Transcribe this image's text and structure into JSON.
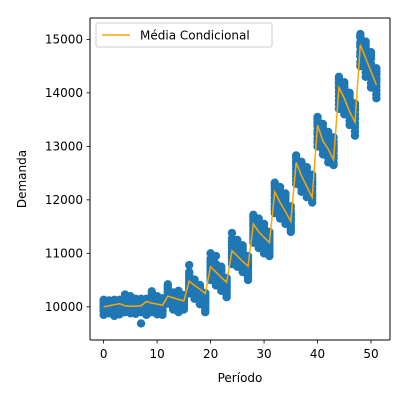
{
  "chart_data": {
    "type": "scatter",
    "xlabel": "Período",
    "ylabel": "Demanda",
    "xlim": [
      -2.55,
      53.55
    ],
    "ylim": [
      9380,
      15400
    ],
    "xticks": [
      0,
      10,
      20,
      30,
      40,
      50
    ],
    "yticks": [
      10000,
      11000,
      12000,
      13000,
      14000,
      15000
    ],
    "grid": false,
    "legend": {
      "position": "top-left",
      "entries": [
        "Média Condicional"
      ]
    },
    "colors": {
      "scatter": "#1f77b4",
      "line": "#ffa500"
    },
    "scatter_series": {
      "x": [
        0,
        0,
        0,
        0,
        0,
        0,
        0,
        0,
        0,
        0,
        1,
        1,
        1,
        1,
        1,
        1,
        1,
        1,
        1,
        1,
        2,
        2,
        2,
        2,
        2,
        2,
        2,
        2,
        2,
        2,
        3,
        3,
        3,
        3,
        3,
        3,
        3,
        3,
        3,
        3,
        4,
        4,
        4,
        4,
        4,
        4,
        4,
        4,
        4,
        4,
        5,
        5,
        5,
        5,
        5,
        5,
        5,
        5,
        5,
        5,
        6,
        6,
        6,
        6,
        6,
        6,
        6,
        6,
        6,
        6,
        7,
        7,
        7,
        7,
        7,
        7,
        7,
        7,
        7,
        7,
        8,
        8,
        8,
        8,
        8,
        8,
        8,
        8,
        8,
        8,
        9,
        9,
        9,
        9,
        9,
        9,
        9,
        9,
        9,
        9,
        10,
        10,
        10,
        10,
        10,
        10,
        10,
        10,
        10,
        10,
        11,
        11,
        11,
        11,
        11,
        11,
        11,
        11,
        11,
        11,
        12,
        12,
        12,
        12,
        12,
        12,
        12,
        12,
        12,
        12,
        13,
        13,
        13,
        13,
        13,
        13,
        13,
        13,
        13,
        13,
        14,
        14,
        14,
        14,
        14,
        14,
        14,
        14,
        14,
        14,
        15,
        15,
        15,
        15,
        15,
        15,
        15,
        15,
        15,
        15,
        16,
        16,
        16,
        16,
        16,
        16,
        16,
        16,
        16,
        16,
        17,
        17,
        17,
        17,
        17,
        17,
        17,
        17,
        17,
        17,
        18,
        18,
        18,
        18,
        18,
        18,
        18,
        18,
        18,
        18,
        19,
        19,
        19,
        19,
        19,
        19,
        19,
        19,
        19,
        19,
        20,
        20,
        20,
        20,
        20,
        20,
        20,
        20,
        20,
        20,
        21,
        21,
        21,
        21,
        21,
        21,
        21,
        21,
        21,
        21,
        22,
        22,
        22,
        22,
        22,
        22,
        22,
        22,
        22,
        22,
        23,
        23,
        23,
        23,
        23,
        23,
        23,
        23,
        23,
        23,
        24,
        24,
        24,
        24,
        24,
        24,
        24,
        24,
        24,
        24,
        25,
        25,
        25,
        25,
        25,
        25,
        25,
        25,
        25,
        25,
        26,
        26,
        26,
        26,
        26,
        26,
        26,
        26,
        26,
        26,
        27,
        27,
        27,
        27,
        27,
        27,
        27,
        27,
        27,
        27,
        28,
        28,
        28,
        28,
        28,
        28,
        28,
        28,
        28,
        28,
        29,
        29,
        29,
        29,
        29,
        29,
        29,
        29,
        29,
        29,
        30,
        30,
        30,
        30,
        30,
        30,
        30,
        30,
        30,
        30,
        31,
        31,
        31,
        31,
        31,
        31,
        31,
        31,
        31,
        31,
        32,
        32,
        32,
        32,
        32,
        32,
        32,
        32,
        32,
        32,
        33,
        33,
        33,
        33,
        33,
        33,
        33,
        33,
        33,
        33,
        34,
        34,
        34,
        34,
        34,
        34,
        34,
        34,
        34,
        34,
        35,
        35,
        35,
        35,
        35,
        35,
        35,
        35,
        35,
        35,
        36,
        36,
        36,
        36,
        36,
        36,
        36,
        36,
        36,
        36,
        37,
        37,
        37,
        37,
        37,
        37,
        37,
        37,
        37,
        37,
        38,
        38,
        38,
        38,
        38,
        38,
        38,
        38,
        38,
        38,
        39,
        39,
        39,
        39,
        39,
        39,
        39,
        39,
        39,
        39,
        40,
        40,
        40,
        40,
        40,
        40,
        40,
        40,
        40,
        40,
        41,
        41,
        41,
        41,
        41,
        41,
        41,
        41,
        41,
        41,
        42,
        42,
        42,
        42,
        42,
        42,
        42,
        42,
        42,
        42,
        43,
        43,
        43,
        43,
        43,
        43,
        43,
        43,
        43,
        43,
        44,
        44,
        44,
        44,
        44,
        44,
        44,
        44,
        44,
        44,
        45,
        45,
        45,
        45,
        45,
        45,
        45,
        45,
        45,
        45,
        46,
        46,
        46,
        46,
        46,
        46,
        46,
        46,
        46,
        46,
        47,
        47,
        47,
        47,
        47,
        47,
        47,
        47,
        47,
        47,
        48,
        48,
        48,
        48,
        48,
        48,
        48,
        48,
        48,
        48,
        49,
        49,
        49,
        49,
        49,
        49,
        49,
        49,
        49,
        49,
        50,
        50,
        50,
        50,
        50,
        50,
        50,
        50,
        50,
        50,
        51,
        51,
        51,
        51,
        51,
        51,
        51,
        51,
        51,
        51
      ],
      "y": [
        9850,
        9920,
        9990,
        10060,
        10130,
        10000,
        9940,
        10080,
        10020,
        9960,
        9880,
        9940,
        10010,
        10070,
        10120,
        9900,
        9960,
        10040,
        10100,
        9980,
        9830,
        9900,
        9970,
        10040,
        10110,
        9860,
        9930,
        10000,
        10070,
        10130,
        9860,
        9930,
        10000,
        10060,
        10130,
        9900,
        9970,
        10040,
        10100,
        9960,
        9900,
        9980,
        10060,
        10140,
        10200,
        9940,
        10020,
        10100,
        10170,
        10230,
        9880,
        9950,
        10020,
        10090,
        10160,
        9910,
        9980,
        10050,
        10120,
        10200,
        9870,
        9940,
        10010,
        10080,
        10150,
        9900,
        9970,
        10040,
        10110,
        9990,
        9690,
        9900,
        9960,
        10020,
        10080,
        9930,
        9990,
        10050,
        10110,
        10150,
        9850,
        9920,
        9990,
        10060,
        10130,
        9880,
        9950,
        10020,
        10090,
        10150,
        9900,
        9980,
        10060,
        10140,
        10220,
        9940,
        10020,
        10100,
        10180,
        10290,
        9860,
        9930,
        10000,
        10070,
        10140,
        9890,
        9960,
        10030,
        10100,
        10200,
        9850,
        9920,
        9990,
        10060,
        10130,
        9880,
        9950,
        10020,
        10090,
        10160,
        10100,
        10180,
        10260,
        10340,
        10420,
        10140,
        10220,
        10300,
        10380,
        10060,
        9950,
        10020,
        10090,
        10160,
        10230,
        9980,
        10050,
        10120,
        10190,
        10270,
        9900,
        9980,
        10060,
        10140,
        10220,
        9940,
        10020,
        10100,
        10180,
        10300,
        9950,
        10010,
        10070,
        10130,
        10190,
        9980,
        10040,
        10100,
        10160,
        10220,
        10250,
        10350,
        10450,
        10550,
        10650,
        10300,
        10400,
        10500,
        10600,
        10780,
        10150,
        10230,
        10310,
        10390,
        10470,
        10190,
        10270,
        10350,
        10430,
        10510,
        10050,
        10130,
        10210,
        10290,
        10370,
        10090,
        10170,
        10250,
        10330,
        10410,
        9900,
        9980,
        10060,
        10140,
        10220,
        9940,
        10020,
        10100,
        10180,
        10260,
        10500,
        10600,
        10700,
        10800,
        10900,
        10550,
        10650,
        10750,
        10850,
        11000,
        10400,
        10500,
        10600,
        10700,
        10800,
        10450,
        10550,
        10650,
        10750,
        10950,
        10300,
        10400,
        10500,
        10600,
        10700,
        10350,
        10450,
        10550,
        10650,
        10750,
        10180,
        10260,
        10340,
        10420,
        10500,
        10220,
        10300,
        10380,
        10460,
        10540,
        10800,
        10920,
        11040,
        11160,
        11280,
        10860,
        10980,
        11100,
        11220,
        11380,
        10750,
        10860,
        10970,
        11080,
        11190,
        10800,
        10910,
        11020,
        11130,
        11250,
        10650,
        10760,
        10870,
        10980,
        11090,
        10700,
        10810,
        10920,
        11030,
        11150,
        10500,
        10600,
        10700,
        10800,
        10900,
        10550,
        10650,
        10750,
        10850,
        10950,
        11200,
        11320,
        11440,
        11560,
        11680,
        11260,
        11380,
        11500,
        11620,
        11720,
        11100,
        11220,
        11340,
        11460,
        11580,
        11160,
        11280,
        11400,
        11520,
        11650,
        11000,
        11120,
        11240,
        11360,
        11480,
        11060,
        11180,
        11300,
        11420,
        11550,
        10950,
        11050,
        11150,
        11250,
        11350,
        11000,
        11100,
        11200,
        11300,
        11400,
        11750,
        11880,
        12010,
        12140,
        12270,
        11820,
        11950,
        12080,
        12210,
        12320,
        11650,
        11780,
        11910,
        12040,
        12170,
        11720,
        11850,
        11980,
        12110,
        12240,
        11550,
        11680,
        11810,
        11940,
        12070,
        11620,
        11750,
        11880,
        12010,
        12120,
        11400,
        11500,
        11600,
        11700,
        11800,
        11450,
        11550,
        11650,
        11750,
        11880,
        12300,
        12440,
        12580,
        12720,
        12830,
        12360,
        12500,
        12640,
        12780,
        12700,
        12150,
        12290,
        12430,
        12570,
        12710,
        12220,
        12360,
        12500,
        12640,
        12600,
        12050,
        12190,
        12330,
        12470,
        12610,
        12120,
        12260,
        12400,
        12540,
        12500,
        11950,
        12080,
        12210,
        12340,
        12470,
        12020,
        12150,
        12280,
        12400,
        12300,
        13000,
        13150,
        13300,
        13450,
        13550,
        13080,
        13230,
        13380,
        13500,
        13400,
        12850,
        13000,
        13150,
        13300,
        13420,
        12930,
        13080,
        13230,
        13350,
        13200,
        12700,
        12850,
        13000,
        13150,
        13270,
        12780,
        12930,
        13080,
        13200,
        13000,
        12650,
        12780,
        12910,
        13040,
        13170,
        12700,
        12830,
        12960,
        13090,
        13000,
        13700,
        13860,
        14020,
        14180,
        14300,
        13780,
        13940,
        14100,
        14250,
        14200,
        13600,
        13760,
        13920,
        14080,
        14200,
        13680,
        13840,
        14000,
        14150,
        14100,
        13400,
        13560,
        13720,
        13880,
        14000,
        13480,
        13640,
        13800,
        13950,
        13900,
        13200,
        13360,
        13520,
        13680,
        13800,
        13280,
        13440,
        13600,
        13750,
        13700,
        14500,
        14680,
        14860,
        15040,
        15100,
        14580,
        14760,
        14940,
        15060,
        14900,
        14300,
        14480,
        14660,
        14840,
        14960,
        14380,
        14560,
        14740,
        14900,
        14700,
        14100,
        14280,
        14460,
        14640,
        14760,
        14180,
        14360,
        14540,
        14700,
        14500,
        13900,
        14050,
        14200,
        14350,
        14460,
        13970,
        14120,
        14270,
        14400,
        14250
      ]
    },
    "line_series": {
      "name": "Média Condicional",
      "x": [
        0,
        1,
        2,
        3,
        4,
        5,
        6,
        7,
        8,
        9,
        10,
        11,
        12,
        13,
        14,
        15,
        16,
        17,
        18,
        19,
        20,
        21,
        22,
        23,
        24,
        25,
        26,
        27,
        28,
        29,
        30,
        31,
        32,
        33,
        34,
        35,
        36,
        37,
        38,
        39,
        40,
        41,
        42,
        43,
        44,
        45,
        46,
        47,
        48,
        49,
        50,
        51
      ],
      "y": [
        10000,
        10020,
        10040,
        10060,
        10020,
        10010,
        10010,
        10020,
        10100,
        10070,
        10050,
        10030,
        10200,
        10170,
        10140,
        10110,
        10480,
        10400,
        10330,
        10250,
        10750,
        10650,
        10550,
        10460,
        11050,
        10950,
        10850,
        10760,
        11550,
        11400,
        11300,
        11200,
        12150,
        11950,
        11780,
        11600,
        12700,
        12450,
        12250,
        12050,
        13400,
        13100,
        12950,
        12750,
        14100,
        13900,
        13650,
        13450,
        14900,
        14650,
        14400,
        14150
      ]
    }
  }
}
